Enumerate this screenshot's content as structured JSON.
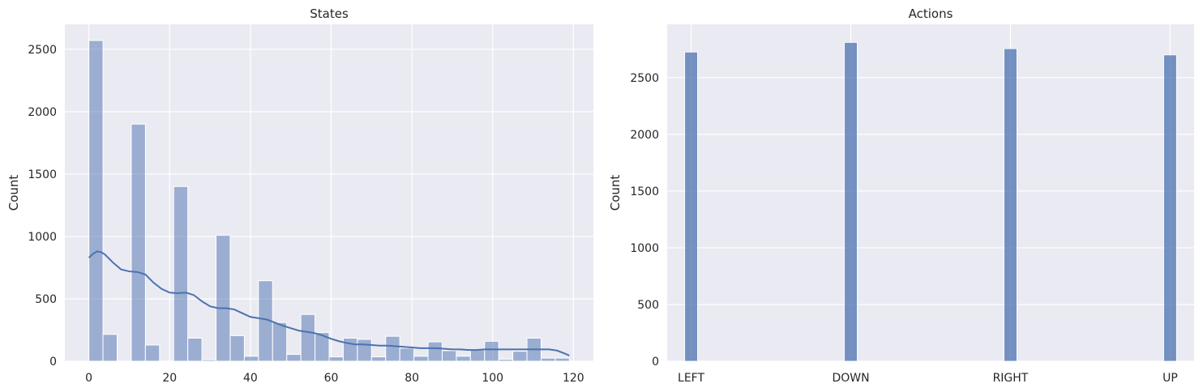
{
  "chart_data": [
    {
      "type": "bar",
      "subtype": "histogram_with_kde",
      "title": "States",
      "xlabel": "",
      "ylabel": "Count",
      "xlim": [
        -5.95,
        124.95
      ],
      "ylim": [
        0,
        2700
      ],
      "xticks": [
        0,
        20,
        40,
        60,
        80,
        100,
        120
      ],
      "yticks": [
        0,
        500,
        1000,
        1500,
        2000,
        2500
      ],
      "grid": true,
      "color": "#4c72b0",
      "bin_edges": [
        0,
        3.5,
        7,
        10.5,
        14,
        17.5,
        21,
        24.5,
        28,
        31.5,
        35,
        38.5,
        42,
        45.5,
        49,
        52.5,
        56,
        59.5,
        63,
        66.5,
        70,
        73.5,
        77,
        80.5,
        84,
        87.5,
        91,
        94.5,
        98,
        101.5,
        105,
        108.5,
        112,
        115.5,
        119
      ],
      "values": [
        2570,
        215,
        0,
        1900,
        130,
        0,
        1400,
        185,
        12,
        1010,
        205,
        40,
        645,
        310,
        55,
        375,
        230,
        35,
        185,
        175,
        35,
        200,
        105,
        40,
        155,
        85,
        40,
        90,
        160,
        15,
        80,
        185,
        25,
        25
      ],
      "kde": {
        "x": [
          0,
          1,
          2,
          3,
          4,
          6,
          8,
          10,
          12,
          14,
          16,
          18,
          20,
          22,
          24,
          26,
          28,
          30,
          32,
          34,
          36,
          38,
          40,
          42,
          44,
          46,
          48,
          50,
          52,
          54,
          56,
          58,
          60,
          62,
          64,
          66,
          68,
          70,
          72,
          74,
          76,
          78,
          80,
          82,
          84,
          86,
          88,
          90,
          92,
          94,
          96,
          98,
          100,
          102,
          104,
          106,
          108,
          110,
          112,
          114,
          116,
          118,
          119
        ],
        "y": [
          830,
          860,
          880,
          875,
          855,
          790,
          735,
          720,
          715,
          695,
          630,
          580,
          550,
          545,
          550,
          530,
          480,
          440,
          425,
          425,
          415,
          385,
          355,
          345,
          335,
          310,
          285,
          265,
          245,
          235,
          225,
          205,
          180,
          160,
          145,
          135,
          135,
          130,
          125,
          125,
          120,
          115,
          110,
          105,
          105,
          105,
          100,
          95,
          95,
          90,
          90,
          95,
          95,
          95,
          95,
          95,
          95,
          95,
          95,
          95,
          85,
          60,
          45
        ]
      }
    },
    {
      "type": "bar",
      "title": "Actions",
      "xlabel": "",
      "ylabel": "Count",
      "xlim": [
        -0.15,
        3.15
      ],
      "ylim": [
        0,
        2970
      ],
      "categories": [
        "LEFT",
        "DOWN",
        "RIGHT",
        "UP"
      ],
      "values": [
        2725,
        2810,
        2755,
        2700
      ],
      "yticks": [
        0,
        500,
        1000,
        1500,
        2000,
        2500
      ],
      "grid": true,
      "color": "#4c72b0"
    }
  ]
}
